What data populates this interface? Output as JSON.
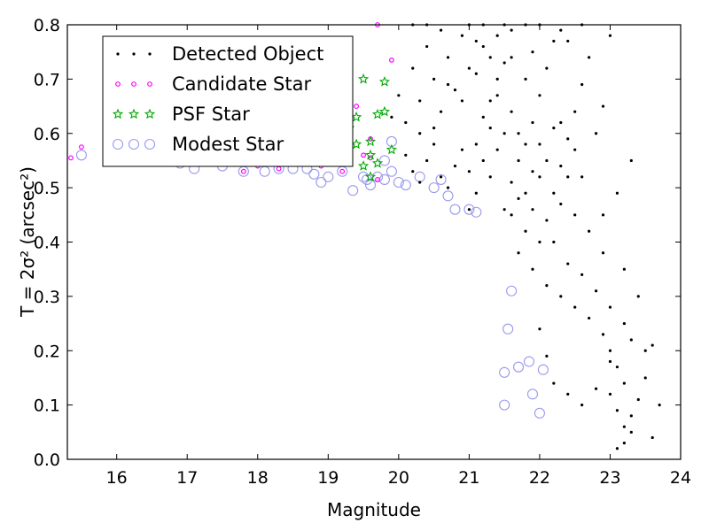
{
  "chart_data": {
    "type": "scatter",
    "xlabel": "Magnitude",
    "ylabel": "T = 2σ² (arcsec²)",
    "xlim": [
      15.3,
      24
    ],
    "ylim": [
      0,
      0.8
    ],
    "xticks": [
      "16",
      "17",
      "18",
      "19",
      "20",
      "21",
      "22",
      "23",
      "24"
    ],
    "yticks": [
      "0.0",
      "0.1",
      "0.2",
      "0.3",
      "0.4",
      "0.5",
      "0.6",
      "0.7",
      "0.8"
    ],
    "legend_position": "top-left",
    "grid": false,
    "series": [
      {
        "name": "Detected Object",
        "marker": "dot",
        "color": "#000000",
        "points": [
          [
            20.1,
            0.56
          ],
          [
            20.2,
            0.53
          ],
          [
            20.3,
            0.51
          ],
          [
            20.4,
            0.55
          ],
          [
            20.5,
            0.58
          ],
          [
            20.6,
            0.52
          ],
          [
            20.7,
            0.5
          ],
          [
            20.8,
            0.54
          ],
          [
            20.9,
            0.57
          ],
          [
            21.0,
            0.53
          ],
          [
            20.1,
            0.62
          ],
          [
            20.3,
            0.66
          ],
          [
            20.5,
            0.7
          ],
          [
            20.7,
            0.74
          ],
          [
            20.9,
            0.78
          ],
          [
            20.2,
            0.72
          ],
          [
            20.4,
            0.76
          ],
          [
            20.6,
            0.64
          ],
          [
            20.8,
            0.68
          ],
          [
            21.0,
            0.72
          ],
          [
            21.1,
            0.49
          ],
          [
            21.2,
            0.55
          ],
          [
            21.3,
            0.61
          ],
          [
            21.4,
            0.67
          ],
          [
            21.5,
            0.73
          ],
          [
            21.6,
            0.79
          ],
          [
            21.1,
            0.58
          ],
          [
            21.3,
            0.52
          ],
          [
            21.5,
            0.46
          ],
          [
            21.7,
            0.48
          ],
          [
            21.2,
            0.76
          ],
          [
            21.4,
            0.7
          ],
          [
            21.6,
            0.64
          ],
          [
            21.8,
            0.58
          ],
          [
            22.0,
            0.52
          ],
          [
            21.9,
            0.46
          ],
          [
            21.7,
            0.55
          ],
          [
            21.5,
            0.6
          ],
          [
            21.3,
            0.66
          ],
          [
            21.1,
            0.71
          ],
          [
            21.6,
            0.45
          ],
          [
            21.8,
            0.42
          ],
          [
            22.0,
            0.4
          ],
          [
            22.1,
            0.44
          ],
          [
            22.2,
            0.49
          ],
          [
            22.3,
            0.54
          ],
          [
            22.4,
            0.59
          ],
          [
            22.5,
            0.64
          ],
          [
            22.6,
            0.69
          ],
          [
            22.7,
            0.74
          ],
          [
            21.9,
            0.62
          ],
          [
            22.0,
            0.67
          ],
          [
            22.1,
            0.72
          ],
          [
            22.2,
            0.77
          ],
          [
            21.8,
            0.7
          ],
          [
            21.6,
            0.74
          ],
          [
            21.4,
            0.78
          ],
          [
            22.3,
            0.62
          ],
          [
            22.5,
            0.57
          ],
          [
            22.6,
            0.52
          ],
          [
            21.7,
            0.38
          ],
          [
            21.9,
            0.35
          ],
          [
            22.1,
            0.32
          ],
          [
            22.3,
            0.3
          ],
          [
            22.5,
            0.28
          ],
          [
            22.7,
            0.26
          ],
          [
            22.9,
            0.23
          ],
          [
            23.0,
            0.2
          ],
          [
            23.1,
            0.17
          ],
          [
            23.2,
            0.14
          ],
          [
            22.2,
            0.4
          ],
          [
            22.4,
            0.36
          ],
          [
            22.6,
            0.34
          ],
          [
            22.8,
            0.31
          ],
          [
            23.0,
            0.28
          ],
          [
            23.2,
            0.25
          ],
          [
            22.9,
            0.38
          ],
          [
            22.7,
            0.42
          ],
          [
            22.5,
            0.45
          ],
          [
            22.3,
            0.47
          ],
          [
            21.2,
            0.63
          ],
          [
            21.4,
            0.57
          ],
          [
            21.6,
            0.51
          ],
          [
            21.8,
            0.49
          ],
          [
            22.0,
            0.58
          ],
          [
            22.2,
            0.61
          ],
          [
            22.4,
            0.52
          ],
          [
            22.1,
            0.55
          ],
          [
            21.9,
            0.53
          ],
          [
            21.7,
            0.6
          ],
          [
            23.0,
            0.12
          ],
          [
            23.1,
            0.09
          ],
          [
            23.2,
            0.06
          ],
          [
            23.2,
            0.03
          ],
          [
            23.3,
            0.05
          ],
          [
            23.1,
            0.02
          ],
          [
            23.3,
            0.08
          ],
          [
            23.4,
            0.11
          ],
          [
            23.5,
            0.15
          ],
          [
            23.6,
            0.04
          ],
          [
            22.0,
            0.24
          ],
          [
            22.1,
            0.19
          ],
          [
            22.2,
            0.14
          ],
          [
            22.4,
            0.12
          ],
          [
            22.6,
            0.1
          ],
          [
            22.8,
            0.13
          ],
          [
            23.0,
            0.18
          ],
          [
            23.3,
            0.22
          ],
          [
            23.5,
            0.2
          ],
          [
            23.6,
            0.21
          ],
          [
            22.9,
            0.45
          ],
          [
            23.1,
            0.49
          ],
          [
            23.3,
            0.55
          ],
          [
            23.2,
            0.35
          ],
          [
            23.4,
            0.3
          ],
          [
            22.8,
            0.6
          ],
          [
            22.9,
            0.65
          ],
          [
            23.0,
            0.78
          ],
          [
            22.6,
            0.8
          ],
          [
            22.3,
            0.79
          ],
          [
            20.6,
            0.79
          ],
          [
            20.4,
            0.8
          ],
          [
            20.2,
            0.8
          ],
          [
            21.0,
            0.8
          ],
          [
            21.8,
            0.8
          ],
          [
            20.0,
            0.67
          ],
          [
            19.9,
            0.63
          ],
          [
            20.3,
            0.6
          ],
          [
            21.0,
            0.46
          ],
          [
            23.7,
            0.1
          ],
          [
            21.2,
            0.8
          ],
          [
            21.5,
            0.8
          ],
          [
            22.0,
            0.8
          ],
          [
            22.4,
            0.77
          ],
          [
            21.9,
            0.75
          ],
          [
            21.3,
            0.74
          ],
          [
            21.1,
            0.77
          ],
          [
            20.9,
            0.66
          ],
          [
            20.7,
            0.69
          ],
          [
            20.5,
            0.61
          ]
        ]
      },
      {
        "name": "Candidate Star",
        "marker": "ring",
        "color": "#ff00ff",
        "points": [
          [
            15.35,
            0.555
          ],
          [
            15.5,
            0.575
          ],
          [
            15.9,
            0.565
          ],
          [
            16.3,
            0.56
          ],
          [
            16.8,
            0.555
          ],
          [
            17.3,
            0.55
          ],
          [
            17.6,
            0.545
          ],
          [
            17.8,
            0.53
          ],
          [
            18.0,
            0.54
          ],
          [
            18.3,
            0.535
          ],
          [
            18.6,
            0.545
          ],
          [
            18.9,
            0.54
          ],
          [
            19.1,
            0.55
          ],
          [
            19.2,
            0.53
          ],
          [
            19.3,
            0.765
          ],
          [
            19.4,
            0.65
          ],
          [
            19.5,
            0.56
          ],
          [
            19.6,
            0.555
          ],
          [
            19.7,
            0.515
          ],
          [
            19.7,
            0.8
          ],
          [
            19.9,
            0.735
          ],
          [
            19.6,
            0.59
          ],
          [
            19.3,
            0.58
          ],
          [
            19.0,
            0.57
          ]
        ]
      },
      {
        "name": "PSF Star",
        "marker": "star",
        "color": "#00aa00",
        "points": [
          [
            19.2,
            0.57
          ],
          [
            19.3,
            0.61
          ],
          [
            19.4,
            0.63
          ],
          [
            19.5,
            0.7
          ],
          [
            19.6,
            0.585
          ],
          [
            19.6,
            0.56
          ],
          [
            19.7,
            0.635
          ],
          [
            19.8,
            0.64
          ],
          [
            19.8,
            0.695
          ],
          [
            19.5,
            0.54
          ],
          [
            19.7,
            0.545
          ],
          [
            19.4,
            0.58
          ],
          [
            19.1,
            0.56
          ],
          [
            19.9,
            0.57
          ],
          [
            19.6,
            0.52
          ]
        ]
      },
      {
        "name": "Modest Star",
        "marker": "circle",
        "color": "#9999ee",
        "points": [
          [
            15.5,
            0.56
          ],
          [
            15.9,
            0.58
          ],
          [
            16.1,
            0.57
          ],
          [
            16.5,
            0.55
          ],
          [
            16.9,
            0.545
          ],
          [
            17.1,
            0.535
          ],
          [
            17.5,
            0.54
          ],
          [
            17.8,
            0.53
          ],
          [
            18.1,
            0.53
          ],
          [
            18.3,
            0.535
          ],
          [
            18.5,
            0.535
          ],
          [
            18.7,
            0.535
          ],
          [
            18.8,
            0.525
          ],
          [
            18.9,
            0.51
          ],
          [
            19.0,
            0.52
          ],
          [
            19.2,
            0.53
          ],
          [
            19.35,
            0.495
          ],
          [
            19.5,
            0.52
          ],
          [
            19.55,
            0.515
          ],
          [
            19.6,
            0.505
          ],
          [
            19.7,
            0.52
          ],
          [
            19.8,
            0.515
          ],
          [
            19.9,
            0.53
          ],
          [
            20.0,
            0.51
          ],
          [
            20.1,
            0.505
          ],
          [
            20.3,
            0.52
          ],
          [
            20.5,
            0.5
          ],
          [
            20.6,
            0.515
          ],
          [
            20.7,
            0.485
          ],
          [
            20.8,
            0.46
          ],
          [
            21.0,
            0.46
          ],
          [
            21.1,
            0.455
          ],
          [
            21.55,
            0.24
          ],
          [
            21.6,
            0.31
          ],
          [
            21.5,
            0.16
          ],
          [
            21.7,
            0.17
          ],
          [
            21.85,
            0.18
          ],
          [
            21.9,
            0.12
          ],
          [
            22.05,
            0.165
          ],
          [
            22.0,
            0.085
          ],
          [
            21.5,
            0.1
          ],
          [
            19.9,
            0.585
          ],
          [
            19.8,
            0.55
          ]
        ]
      }
    ]
  }
}
